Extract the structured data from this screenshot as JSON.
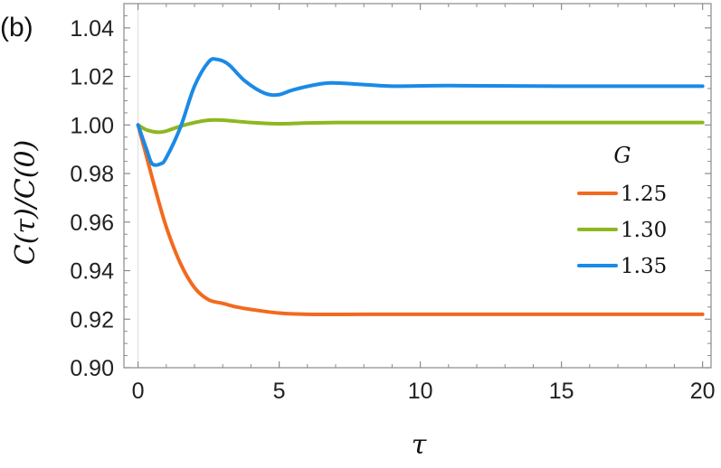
{
  "chart_data": {
    "type": "line",
    "panel_label": "(b)",
    "xlabel": "τ",
    "ylabel": "C(τ)/C(0)",
    "xlim": [
      -0.5,
      20.3
    ],
    "ylim": [
      0.9,
      1.05
    ],
    "x_ticks": [
      0,
      5,
      10,
      15,
      20
    ],
    "x_tick_labels": [
      "0",
      "5",
      "10",
      "15",
      "20"
    ],
    "y_ticks": [
      0.9,
      0.92,
      0.94,
      0.96,
      0.98,
      1.0,
      1.02,
      1.04
    ],
    "y_tick_labels": [
      "0.90",
      "0.92",
      "0.94",
      "0.96",
      "0.98",
      "1.00",
      "1.02",
      "1.04"
    ],
    "grid": false,
    "legend": {
      "title": "G",
      "placement": "right"
    },
    "series": [
      {
        "name": "1.25",
        "color": "#F26A1F",
        "x": [
          0,
          0.3,
          0.6,
          1.0,
          1.5,
          2.0,
          2.5,
          3.0,
          3.5,
          4.0,
          5.0,
          6.0,
          8.0,
          10.0,
          15.0,
          20.0
        ],
        "y": [
          1.0,
          0.987,
          0.974,
          0.958,
          0.943,
          0.933,
          0.928,
          0.9265,
          0.925,
          0.924,
          0.9225,
          0.922,
          0.922,
          0.922,
          0.922,
          0.922
        ]
      },
      {
        "name": "1.30",
        "color": "#8DB720",
        "x": [
          0,
          0.3,
          0.7,
          1.0,
          1.5,
          2.0,
          2.5,
          3.0,
          4.0,
          5.0,
          6.0,
          7.0,
          8.0,
          10.0,
          15.0,
          20.0
        ],
        "y": [
          1.0,
          0.998,
          0.997,
          0.9975,
          0.9995,
          1.001,
          1.002,
          1.002,
          1.001,
          1.0005,
          1.0008,
          1.001,
          1.001,
          1.001,
          1.001,
          1.001
        ]
      },
      {
        "name": "1.35",
        "color": "#1B8AE6",
        "x": [
          0,
          0.3,
          0.5,
          0.8,
          1.0,
          1.5,
          2.0,
          2.5,
          2.8,
          3.2,
          3.8,
          4.5,
          5.0,
          5.5,
          6.5,
          7.0,
          7.8,
          9.0,
          11.0,
          15.0,
          20.0
        ],
        "y": [
          1.0,
          0.99,
          0.984,
          0.984,
          0.9865,
          0.999,
          1.016,
          1.026,
          1.027,
          1.025,
          1.018,
          1.013,
          1.0125,
          1.0145,
          1.017,
          1.0173,
          1.0168,
          1.016,
          1.0162,
          1.016,
          1.016
        ]
      }
    ]
  }
}
